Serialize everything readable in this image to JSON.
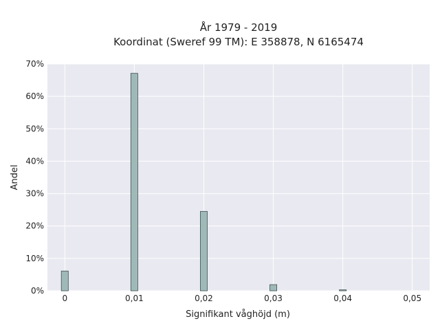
{
  "chart_data": {
    "type": "bar",
    "title_lines": [
      "År 1979 - 2019",
      "Koordinat (Sweref 99 TM): E 358878, N 6165474"
    ],
    "xlabel": "Signifikant våghöjd (m)",
    "ylabel": "Andel",
    "x_ticks": [
      "0",
      "0,01",
      "0,02",
      "0,03",
      "0,04",
      "0,05"
    ],
    "x_tick_values": [
      0,
      0.01,
      0.02,
      0.03,
      0.04,
      0.05
    ],
    "y_ticks": [
      "0%",
      "10%",
      "20%",
      "30%",
      "40%",
      "50%",
      "60%",
      "70%"
    ],
    "y_tick_values": [
      0,
      10,
      20,
      30,
      40,
      50,
      60,
      70
    ],
    "xlim": [
      -0.0025,
      0.0525
    ],
    "ylim": [
      0,
      70
    ],
    "bar_width": 0.001,
    "x": [
      0,
      0.01,
      0.02,
      0.03,
      0.04
    ],
    "values": [
      6.1,
      67.1,
      24.5,
      1.9,
      0.3
    ],
    "grid": true,
    "colors": {
      "plot_background": "#e9e9f1",
      "grid": "#ffffff",
      "bar_fill": "#9fb9b9",
      "bar_stroke": "#3f4f4f"
    }
  }
}
